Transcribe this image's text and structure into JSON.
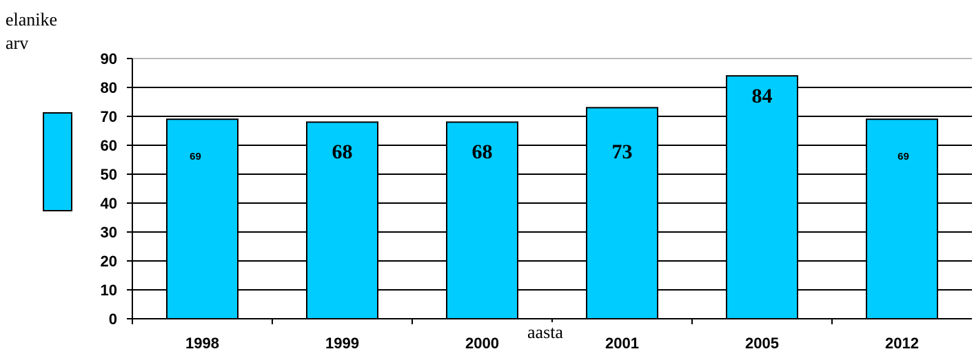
{
  "chart_data": {
    "type": "bar",
    "categories": [
      "1998",
      "1999",
      "2000",
      "2001",
      "2005",
      "2012"
    ],
    "values": [
      69,
      68,
      68,
      73,
      84,
      69
    ],
    "data_labels": [
      "69",
      "68",
      "68",
      "73",
      "84",
      "69"
    ],
    "title": "",
    "ylabel_lines": [
      "elanike",
      "arv"
    ],
    "xlabel": "aasta",
    "ylim": [
      0,
      90
    ],
    "ytick_step": 10,
    "grid": true,
    "bar_color": "#00ccff"
  }
}
